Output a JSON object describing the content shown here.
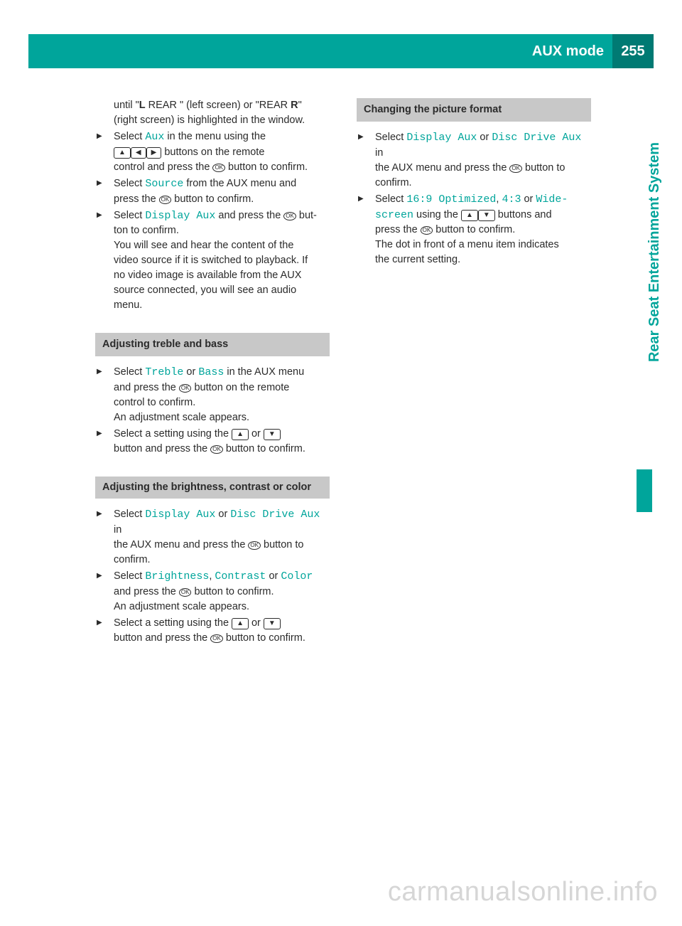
{
  "header": {
    "title": "AUX mode",
    "page_number": "255"
  },
  "side_tab": "Rear Seat Entertainment System",
  "col_left": {
    "intro_line1_a": "until \"",
    "intro_line1_b": "L",
    "intro_line1_c": " REAR \" (left screen) or \"REAR ",
    "intro_line1_d": "R",
    "intro_line1_e": "\"",
    "intro_line2": "(right screen) is highlighted in the window.",
    "s1_a": "Select ",
    "s1_cmd": "Aux",
    "s1_b": " in the menu using the",
    "s1_line2": " buttons on the remote",
    "s1_line3_a": "control and press the ",
    "s1_line3_b": " button to confirm.",
    "s2_a": "Select ",
    "s2_cmd": "Source",
    "s2_b": " from the AUX menu and",
    "s2_line2_a": "press the ",
    "s2_line2_b": " button to confirm.",
    "s3_a": "Select ",
    "s3_cmd": "Display Aux",
    "s3_b": " and press the ",
    "s3_c": " but-",
    "s3_line2": "ton to confirm.",
    "s3_line3": "You will see and hear the content of the",
    "s3_line4": "video source if it is switched to playback. If",
    "s3_line5": "no video image is available from the AUX",
    "s3_line6": "source connected, you will see an audio",
    "s3_line7": "menu.",
    "h1": "Adjusting treble and bass",
    "tb1_a": "Select ",
    "tb1_cmd1": "Treble",
    "tb1_b": " or ",
    "tb1_cmd2": "Bass",
    "tb1_c": " in the AUX menu",
    "tb1_line2_a": "and press the ",
    "tb1_line2_b": " button on the remote",
    "tb1_line3": "control to confirm.",
    "tb1_line4": "An adjustment scale appears.",
    "tb2_a": "Select a setting using the ",
    "tb2_b": " or ",
    "tb2_line2_a": "button and press the ",
    "tb2_line2_b": " button to confirm.",
    "h2": "Adjusting the brightness, contrast or color",
    "bc1_a": "Select ",
    "bc1_cmd1": "Display Aux",
    "bc1_b": " or ",
    "bc1_cmd2": "Disc Drive Aux",
    "bc1_c": " in",
    "bc1_line2_a": "the AUX menu and press the ",
    "bc1_line2_b": " button to",
    "bc1_line3": "confirm.",
    "bc2_a": "Select ",
    "bc2_cmd1": "Brightness",
    "bc2_b": ", ",
    "bc2_cmd2": "Contrast",
    "bc2_c": " or ",
    "bc2_cmd3": "Color",
    "bc2_line2_a": "and press the ",
    "bc2_line2_b": " button to confirm.",
    "bc2_line3": "An adjustment scale appears.",
    "bc3_a": "Select a setting using the ",
    "bc3_b": " or ",
    "bc3_line2_a": "button and press the ",
    "bc3_line2_b": " button to confirm."
  },
  "col_right": {
    "h1": "Changing the picture format",
    "p1_a": "Select ",
    "p1_cmd1": "Display Aux",
    "p1_b": " or ",
    "p1_cmd2": "Disc Drive Aux",
    "p1_c": " in",
    "p1_line2_a": "the AUX menu and press the ",
    "p1_line2_b": " button to",
    "p1_line3": "confirm.",
    "p2_a": "Select ",
    "p2_cmd1": "16:9 Optimized",
    "p2_b": ", ",
    "p2_cmd2": "4:3",
    "p2_c": " or ",
    "p2_cmd3": "Wide-",
    "p2_cmd3b": "screen",
    "p2_line2_a": " using the ",
    "p2_line2_b": " buttons and",
    "p2_line3_a": "press the ",
    "p2_line3_b": " button to confirm.",
    "p2_line4": "The dot in front of a menu item indicates",
    "p2_line5": "the current setting."
  },
  "icons": {
    "up": "▲",
    "down": "▼",
    "left": "◀",
    "right": "▶",
    "ok": "OK"
  },
  "watermark": "carmanualsonline.info"
}
